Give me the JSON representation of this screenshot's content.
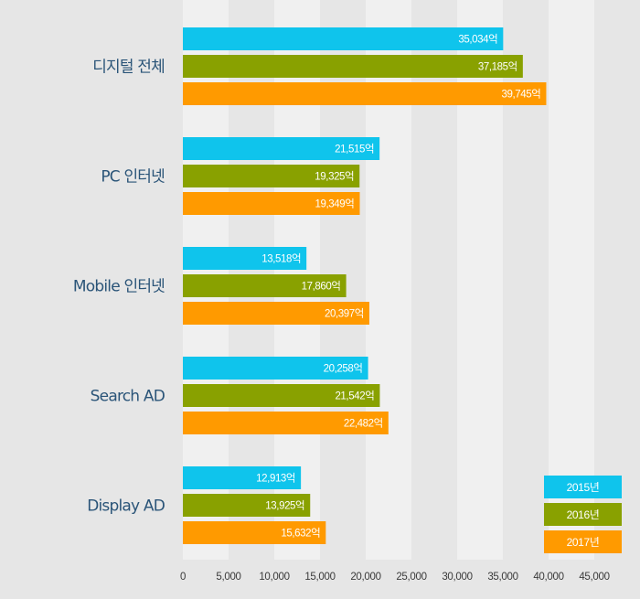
{
  "chart_data": {
    "type": "bar",
    "orientation": "horizontal",
    "categories": [
      "디지털 전체",
      "PC 인터넷",
      "Mobile 인터넷",
      "Search AD",
      "Display AD"
    ],
    "series": [
      {
        "name": "2015년",
        "color": "#0fc4ec",
        "values": [
          35034,
          21515,
          13518,
          20258,
          12913
        ],
        "labels": [
          "35,034억",
          "21,515억",
          "13,518억",
          "20,258억",
          "12,913억"
        ]
      },
      {
        "name": "2016년",
        "color": "#89a100",
        "values": [
          37185,
          19325,
          17860,
          21542,
          13925
        ],
        "labels": [
          "37,185억",
          "19,325억",
          "17,860억",
          "21,542억",
          "13,925억"
        ]
      },
      {
        "name": "2017년",
        "color": "#ff9a00",
        "values": [
          39745,
          19349,
          20397,
          22482,
          15632
        ],
        "labels": [
          "39,745억",
          "19,349억",
          "20,397억",
          "22,482억",
          "15,632억"
        ]
      }
    ],
    "xlim": [
      0,
      50000
    ],
    "xticks": [
      0,
      5000,
      10000,
      15000,
      20000,
      25000,
      30000,
      35000,
      40000,
      45000
    ],
    "xtick_labels": [
      "0",
      "5,000",
      "10,000",
      "15,000",
      "20,000",
      "25,000",
      "30,000",
      "35,000",
      "40,000",
      "45,000"
    ],
    "grid": "alternating vertical bands",
    "legend_position": "bottom-right",
    "background_color": "#e6e6e6",
    "band_color": "#f0f0f0",
    "category_label_color": "#2a5478"
  }
}
